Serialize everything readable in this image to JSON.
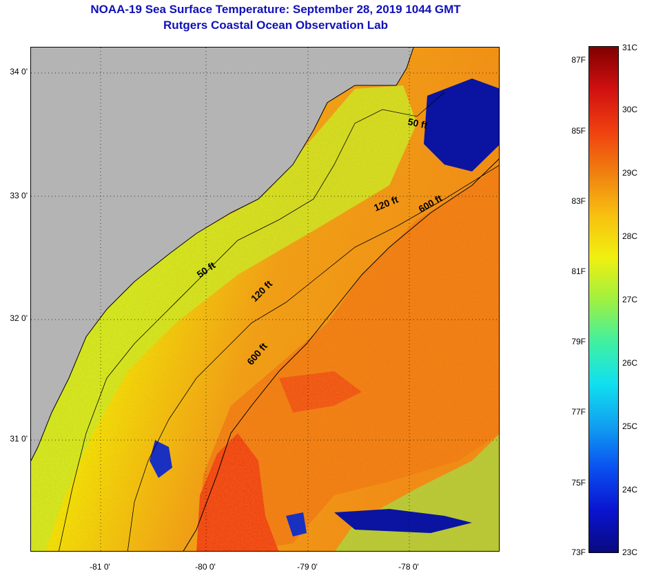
{
  "title": {
    "line1": "NOAA-19 Sea Surface Temperature:  September 28, 2019 1044 GMT",
    "line2": "Rutgers Coastal Ocean Observation Lab"
  },
  "map": {
    "latitude_labels": [
      "34 0'",
      "33 0'",
      "32 0'",
      "31 0'"
    ],
    "longitude_labels": [
      "-81 0'",
      "-80 0'",
      "-79 0'",
      "-78 0'"
    ],
    "isobath_labels": [
      "50 ft",
      "120 ft",
      "600 ft",
      "50 ft",
      "120 ft",
      "600 ft"
    ],
    "land_color": "#b4b4b4",
    "ocean_colors": {
      "nearshore": "#c8f020",
      "shelf": "#f0e600",
      "offshore": "#f08a10",
      "gulf_stream": "#ee3c10",
      "cold_patch": "#0a14a0"
    }
  },
  "colorbar": {
    "celsius_labels": [
      "31C",
      "30C",
      "29C",
      "28C",
      "27C",
      "26C",
      "25C",
      "24C",
      "23C"
    ],
    "fahrenheit_labels": [
      "87F",
      "85F",
      "83F",
      "81F",
      "79F",
      "77F",
      "75F",
      "73F"
    ],
    "gradient": [
      "#0a0a80",
      "#0a14d0",
      "#0a50f0",
      "#10a0f0",
      "#10e0f0",
      "#40f0a0",
      "#a0f040",
      "#f0f010",
      "#f8c010",
      "#f08010",
      "#f04010",
      "#d01010",
      "#800000"
    ]
  }
}
